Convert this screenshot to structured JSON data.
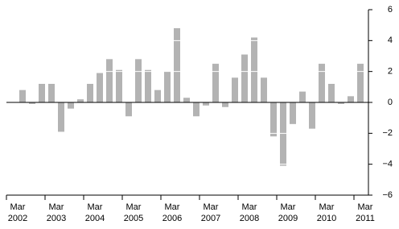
{
  "chart_data": {
    "type": "bar",
    "categories": [
      "Mar\n2002",
      null,
      null,
      null,
      "Mar\n2003",
      null,
      null,
      null,
      "Mar\n2004",
      null,
      null,
      null,
      "Mar\n2005",
      null,
      null,
      null,
      "Mar\n2006",
      null,
      null,
      null,
      "Mar\n2007",
      null,
      null,
      null,
      "Mar\n2008",
      null,
      null,
      null,
      "Mar\n2009",
      null,
      null,
      null,
      "Mar\n2010",
      null,
      null,
      null,
      "Mar\n2011"
    ],
    "values": [
      null,
      0.8,
      -0.1,
      1.2,
      1.2,
      -1.9,
      -0.4,
      0.2,
      1.2,
      1.9,
      2.8,
      2.1,
      -0.9,
      2.8,
      2.1,
      0.8,
      2.0,
      4.8,
      0.3,
      -0.9,
      -0.2,
      2.5,
      -0.3,
      1.6,
      3.1,
      4.2,
      1.6,
      -2.2,
      -4.1,
      -1.4,
      0.7,
      -1.7,
      2.5,
      1.2,
      -0.1,
      0.4,
      2.5
    ],
    "color": "#b3b3b3",
    "ylim": [
      -6,
      6
    ],
    "yticks": [
      {
        "value": -6,
        "label": "−6"
      },
      {
        "value": -4,
        "label": "−4"
      },
      {
        "value": -2,
        "label": "−2"
      },
      0,
      2,
      4,
      6
    ],
    "grid": true
  }
}
